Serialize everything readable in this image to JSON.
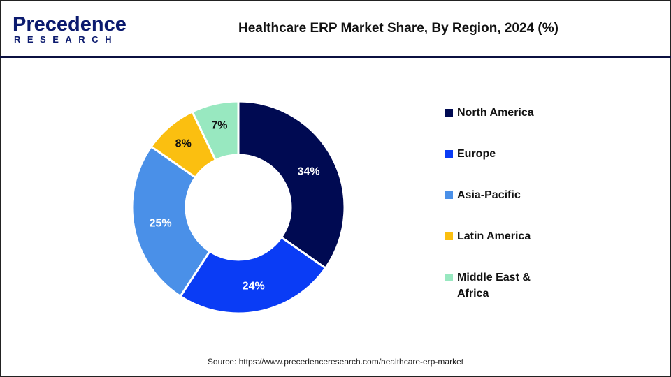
{
  "header": {
    "logo_text": "Precedence",
    "logo_sub": "RESEARCH",
    "title": "Healthcare ERP Market Share, By Region, 2024 (%)"
  },
  "chart_data": {
    "type": "pie",
    "subtype": "donut",
    "title": "Healthcare ERP Market Share, By Region, 2024 (%)",
    "categories": [
      "North America",
      "Europe",
      "Asia-Pacific",
      "Latin America",
      "Middle East & Africa"
    ],
    "values": [
      34,
      24,
      25,
      8,
      7
    ],
    "labels": [
      "34%",
      "24%",
      "25%",
      "8%",
      "7%"
    ],
    "colors": [
      "#000a52",
      "#0a3cf5",
      "#4a90e8",
      "#fbbf10",
      "#98e8c0"
    ],
    "label_colors": [
      "#ffffff",
      "#ffffff",
      "#ffffff",
      "#111111",
      "#111111"
    ],
    "legend_placement": "right"
  },
  "legend": [
    {
      "label": "North America"
    },
    {
      "label": "Europe"
    },
    {
      "label": "Asia-Pacific"
    },
    {
      "label": "Latin America"
    },
    {
      "label": "Middle East & Africa"
    }
  ],
  "source": "Source: https://www.precedenceresearch.com/healthcare-erp-market"
}
